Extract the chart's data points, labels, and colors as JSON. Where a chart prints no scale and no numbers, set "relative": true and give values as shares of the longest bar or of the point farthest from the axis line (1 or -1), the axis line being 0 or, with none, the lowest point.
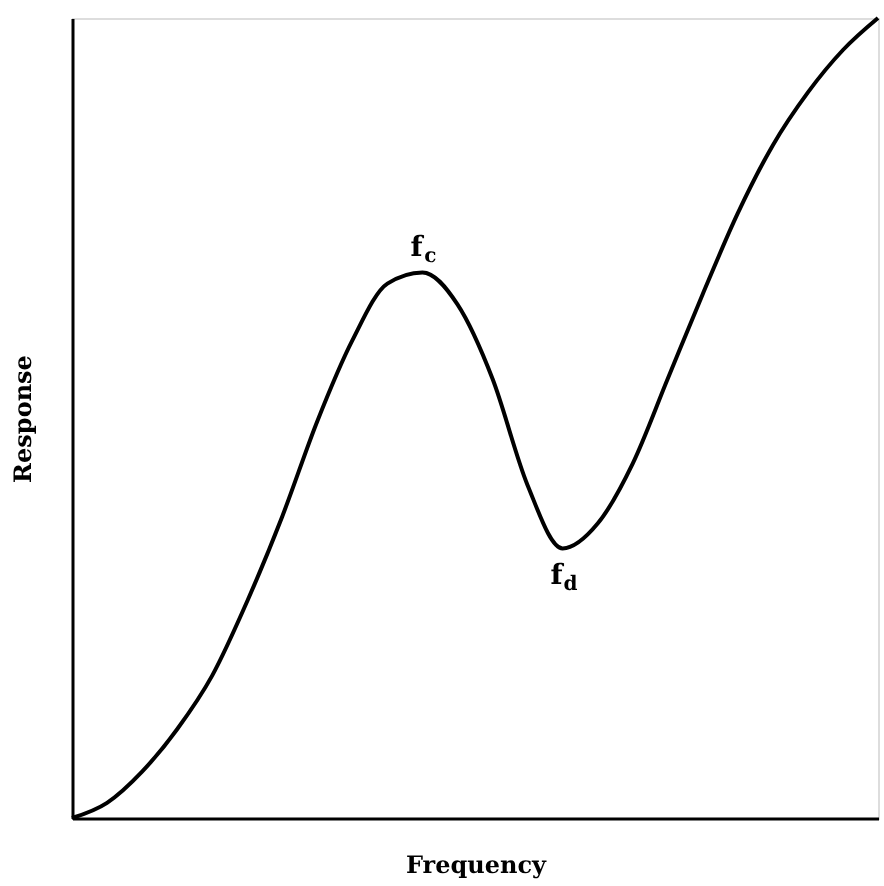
{
  "chart_data": {
    "type": "line",
    "xlabel": "Frequency",
    "ylabel": "Response",
    "relative": true,
    "grid": false,
    "marker": "none",
    "line_style": "solid",
    "color": "#000000",
    "categories": [
      null,
      null,
      null,
      null,
      null,
      null,
      null,
      null,
      null,
      null,
      null,
      null,
      null,
      null,
      null,
      null,
      null,
      null,
      null,
      null,
      null,
      null,
      null,
      null
    ],
    "values": [
      0,
      0.019,
      0.058,
      0.111,
      0.178,
      0.271,
      0.377,
      0.496,
      0.597,
      0.668,
      0.682,
      0.642,
      0.549,
      0.416,
      0.337,
      0.368,
      0.443,
      0.549,
      0.655,
      0.756,
      0.841,
      0.907,
      0.96,
      1.0
    ],
    "annotations": [
      {
        "text": "f$_{c}$",
        "y": 0.682
      },
      {
        "text": "f$_{d}$",
        "y": 0.337
      }
    ]
  }
}
